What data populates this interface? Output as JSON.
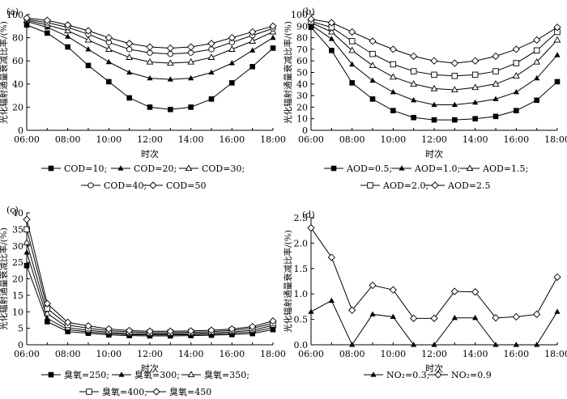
{
  "chart_data": [
    {
      "panel": "(a)",
      "type": "line",
      "xlabel": "时次",
      "ylabel": "光化辐射通量衰减比率/(%)",
      "x": [
        "06:00",
        "07:00",
        "08:00",
        "09:00",
        "10:00",
        "11:00",
        "12:00",
        "13:00",
        "14:00",
        "15:00",
        "16:00",
        "17:00",
        "18:00"
      ],
      "xticks": [
        "06:00",
        "08:00",
        "10:00",
        "12:00",
        "14:00",
        "16:00",
        "18:00"
      ],
      "ylim": [
        0,
        100
      ],
      "yticks": [
        "0",
        "20",
        "40",
        "60",
        "80",
        "100"
      ],
      "series": [
        {
          "name": "COD=10;",
          "marker": "square-filled",
          "values": [
            91,
            84,
            72,
            56,
            42,
            28,
            20,
            18,
            20,
            27,
            41,
            55,
            71
          ]
        },
        {
          "name": "COD=20;",
          "marker": "triangle-filled",
          "values": [
            94,
            89,
            81,
            70,
            59,
            50,
            45,
            44,
            45,
            50,
            58,
            69,
            80
          ]
        },
        {
          "name": "COD=30;",
          "marker": "triangle-open",
          "values": [
            95,
            91,
            86,
            78,
            70,
            63,
            59,
            58,
            59,
            63,
            70,
            77,
            85
          ]
        },
        {
          "name": "COD=40;",
          "marker": "circle-open",
          "values": [
            96,
            93,
            89,
            83,
            76,
            70,
            67,
            66,
            67,
            70,
            76,
            82,
            88
          ]
        },
        {
          "name": "COD=50",
          "marker": "diamond-open",
          "values": [
            97,
            95,
            91,
            86,
            80,
            75,
            72,
            71,
            72,
            75,
            80,
            85,
            90
          ]
        }
      ]
    },
    {
      "panel": "(b)",
      "type": "line",
      "xlabel": "时次",
      "ylabel": "光化辐射通量衰减比率/(%)",
      "x": [
        "06:00",
        "07:00",
        "08:00",
        "09:00",
        "10:00",
        "11:00",
        "12:00",
        "13:00",
        "14:00",
        "15:00",
        "16:00",
        "17:00",
        "18:00"
      ],
      "xticks": [
        "06:00",
        "08:00",
        "10:00",
        "12:00",
        "14:00",
        "16:00",
        "18:00"
      ],
      "ylim": [
        0,
        100
      ],
      "yticks": [
        "0",
        "10",
        "20",
        "30",
        "40",
        "50",
        "60",
        "70",
        "80",
        "90",
        "100"
      ],
      "series": [
        {
          "name": "AOD=0.5;",
          "marker": "square-filled",
          "values": [
            89,
            69,
            41,
            27,
            17,
            11,
            9,
            9,
            10,
            12,
            17,
            26,
            42
          ]
        },
        {
          "name": "AOD=1.0;",
          "marker": "triangle-filled",
          "values": [
            91,
            79,
            57,
            43,
            33,
            26,
            22,
            22,
            24,
            27,
            33,
            45,
            65
          ]
        },
        {
          "name": "AOD=1.5;",
          "marker": "triangle-open",
          "values": [
            93,
            85,
            69,
            56,
            46,
            40,
            36,
            35,
            37,
            40,
            47,
            59,
            78
          ]
        },
        {
          "name": "AOD=2.0;",
          "marker": "square-open",
          "values": [
            94,
            89,
            77,
            66,
            57,
            51,
            48,
            47,
            48,
            51,
            58,
            69,
            85
          ]
        },
        {
          "name": "AOD=2.5",
          "marker": "diamond-open",
          "values": [
            96,
            93,
            85,
            77,
            70,
            64,
            60,
            58,
            60,
            64,
            70,
            78,
            89
          ]
        }
      ]
    },
    {
      "panel": "(c)",
      "type": "line",
      "xlabel": "时次",
      "ylabel": "光化辐射通量衰减比率/(%)",
      "x": [
        "06:00",
        "07:00",
        "08:00",
        "09:00",
        "10:00",
        "11:00",
        "12:00",
        "13:00",
        "14:00",
        "15:00",
        "16:00",
        "17:00",
        "18:00"
      ],
      "xticks": [
        "06:00",
        "08:00",
        "10:00",
        "12:00",
        "14:00",
        "16:00",
        "18:00"
      ],
      "ylim": [
        0,
        40
      ],
      "yticks": [
        "0",
        "5",
        "10",
        "15",
        "20",
        "25",
        "30",
        "35",
        "40"
      ],
      "series": [
        {
          "name": "臭氧=250;",
          "marker": "square-filled",
          "values": [
            24,
            7,
            4,
            3.5,
            3,
            2.8,
            2.7,
            2.7,
            2.8,
            2.9,
            3.1,
            3.4,
            4.6
          ]
        },
        {
          "name": "臭氧=300;",
          "marker": "triangle-filled",
          "values": [
            28,
            8,
            4.6,
            3.9,
            3.4,
            3.1,
            3,
            3,
            3.1,
            3.2,
            3.5,
            3.9,
            5.2
          ]
        },
        {
          "name": "臭氧=350;",
          "marker": "triangle-open",
          "values": [
            31,
            9.5,
            5.2,
            4.4,
            3.8,
            3.4,
            3.3,
            3.3,
            3.4,
            3.6,
            3.9,
            4.4,
            5.9
          ]
        },
        {
          "name": "臭氧=400;",
          "marker": "square-open",
          "values": [
            35,
            11,
            6,
            5,
            4.3,
            3.9,
            3.7,
            3.7,
            3.8,
            4,
            4.4,
            5,
            6.5
          ]
        },
        {
          "name": "臭氧=450",
          "marker": "diamond-open",
          "values": [
            38,
            12.5,
            6.8,
            5.7,
            4.8,
            4.3,
            4.1,
            4.1,
            4.2,
            4.4,
            4.8,
            5.5,
            7.2
          ]
        }
      ]
    },
    {
      "panel": "(d)",
      "type": "line",
      "xlabel": "时次",
      "ylabel": "光化辐射通量衰减比率/(%)",
      "x": [
        "06:00",
        "07:00",
        "08:00",
        "09:00",
        "10:00",
        "11:00",
        "12:00",
        "13:00",
        "14:00",
        "15:00",
        "16:00",
        "17:00",
        "18:00"
      ],
      "xticks": [
        "06:00",
        "08:00",
        "10:00",
        "12:00",
        "14:00",
        "16:00",
        "18:00"
      ],
      "ylim": [
        0,
        2.5
      ],
      "yticks": [
        "0.0",
        "0.5",
        "1.0",
        "1.5",
        "2.0",
        "2.5"
      ],
      "series": [
        {
          "name": "NO₂=0.3;",
          "marker": "triangle-filled",
          "values": [
            0.65,
            0.87,
            0,
            0.6,
            0.55,
            0,
            0,
            0.53,
            0.53,
            0,
            0,
            0,
            0.65
          ]
        },
        {
          "name": "NO₂=0.9",
          "marker": "diamond-open",
          "values": [
            2.3,
            1.72,
            0.68,
            1.17,
            1.08,
            0.52,
            0.52,
            1.05,
            1.04,
            0.53,
            0.55,
            0.6,
            1.33
          ]
        }
      ]
    }
  ]
}
